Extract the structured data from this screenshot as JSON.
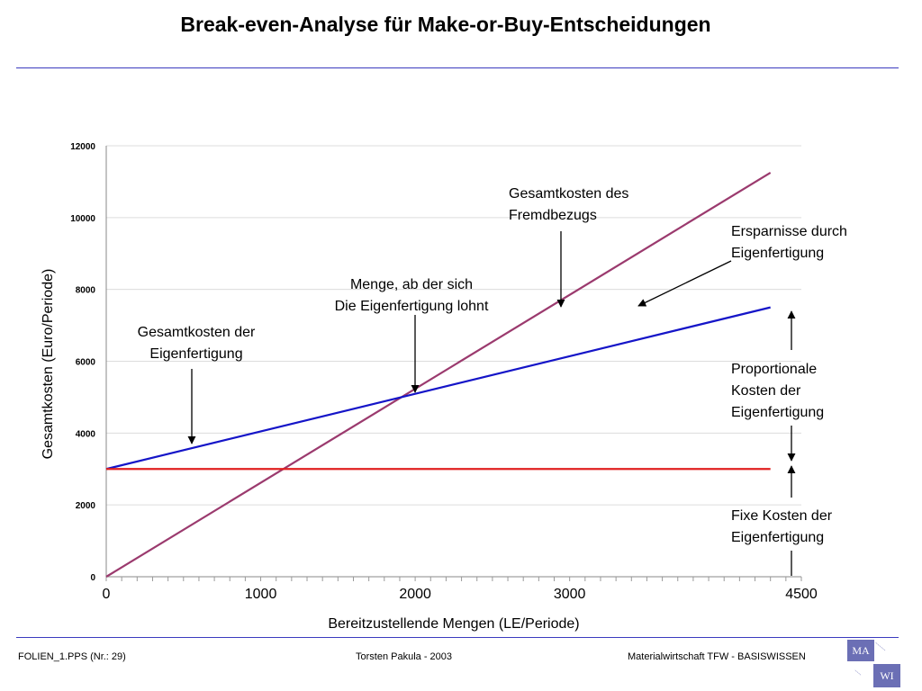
{
  "header": {
    "title": "Break-even-Analyse für Make-or-Buy-Entscheidungen"
  },
  "chart_data": {
    "type": "line",
    "xlabel": "Bereitzustellende Mengen (LE/Periode)",
    "ylabel": "Gesamtkosten (Euro/Periode)",
    "xlim": [
      0,
      4500
    ],
    "ylim": [
      0,
      12000
    ],
    "x_ticks": [
      "0",
      "1000",
      "2000",
      "3000",
      "4500"
    ],
    "y_ticks": [
      "0",
      "2000",
      "4000",
      "6000",
      "8000",
      "10000",
      "12000"
    ],
    "grid": true,
    "series": [
      {
        "key": "buy",
        "color": "#9b3a6e",
        "points": [
          [
            0,
            0
          ],
          [
            4300,
            11250
          ]
        ]
      },
      {
        "key": "make",
        "color": "#1515c8",
        "points": [
          [
            0,
            3000
          ],
          [
            4300,
            7500
          ]
        ]
      },
      {
        "key": "fixed",
        "color": "#e02020",
        "points": [
          [
            0,
            3000
          ],
          [
            4300,
            3000
          ]
        ]
      }
    ],
    "annotations": [
      {
        "key": "a_eigen",
        "lines": [
          "Gesamtkosten der",
          "Eigenfertigung"
        ]
      },
      {
        "key": "a_be",
        "lines": [
          "Menge, ab der sich",
          "Die Eigenfertigung lohnt"
        ]
      },
      {
        "key": "a_fremd",
        "lines": [
          "Gesamtkosten des",
          "Fremdbezugs"
        ]
      },
      {
        "key": "a_spar",
        "lines": [
          "Ersparnisse durch",
          "Eigenfertigung"
        ]
      },
      {
        "key": "a_prop",
        "lines": [
          "Proportionale",
          "Kosten der",
          "Eigenfertigung"
        ]
      },
      {
        "key": "a_fix",
        "lines": [
          "Fixe Kosten der",
          "Eigenfertigung"
        ]
      }
    ]
  },
  "footer": {
    "left": "FOLIEN_1.PPS (Nr.: 29)",
    "center": "Torsten Pakula - 2003",
    "right": "Materialwirtschaft TFW - BASISWISSEN"
  },
  "logo": {
    "top": "MA",
    "bottom": "WI"
  }
}
